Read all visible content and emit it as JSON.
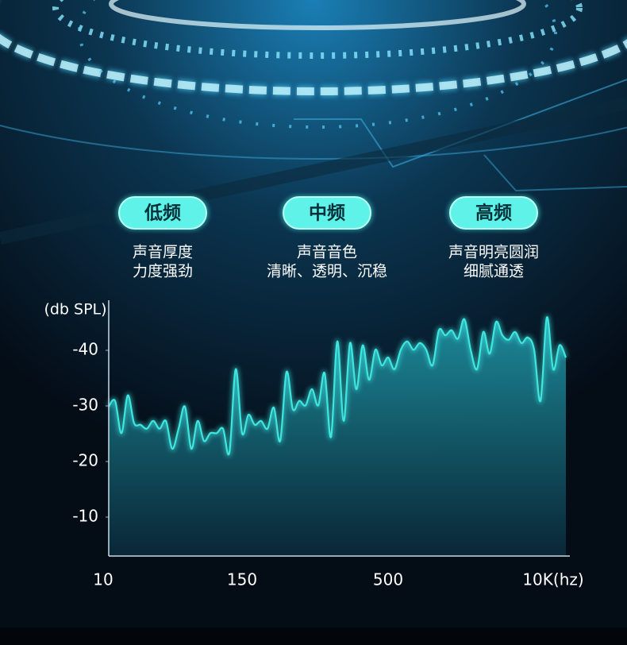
{
  "bands": [
    {
      "label": "低频",
      "lines": [
        "声音厚度",
        "力度强劲"
      ]
    },
    {
      "label": "中频",
      "lines": [
        "声音音色",
        "清晰、透明、沉稳"
      ]
    },
    {
      "label": "高频",
      "lines": [
        "声音明亮圆润",
        "细腻通透"
      ]
    }
  ],
  "chart_data": {
    "type": "area",
    "y_label": "(db SPL)",
    "categories": [
      "10",
      null,
      null,
      null,
      null,
      null,
      null,
      null,
      null,
      null,
      null,
      null,
      null,
      null,
      null,
      null,
      null,
      null,
      null,
      null,
      null,
      "150",
      null,
      null,
      null,
      null,
      null,
      null,
      null,
      null,
      null,
      null,
      null,
      null,
      null,
      null,
      null,
      null,
      null,
      null,
      null,
      null,
      null,
      null,
      "500",
      null,
      null,
      null,
      null,
      null,
      null,
      null,
      null,
      null,
      null,
      null,
      null,
      null,
      null,
      null,
      null,
      null,
      null,
      null,
      null,
      null,
      null,
      null,
      null,
      null,
      "10K(hz)",
      null,
      null
    ],
    "series": [
      {
        "color": "#3ee6e0",
        "values": [
          -29.9,
          -30.9,
          -25.1,
          -31.9,
          -26.9,
          -26.6,
          -25.9,
          -27.3,
          -25.9,
          -27.3,
          -22.3,
          -25.9,
          -29.9,
          -22.3,
          -27.3,
          -23.7,
          -25.1,
          -25.1,
          -25.9,
          -21.6,
          -36.6,
          -25.1,
          -28.4,
          -26.6,
          -27.3,
          -25.9,
          -29.7,
          -23.7,
          -36.1,
          -29.4,
          -30.9,
          -30.1,
          -33.0,
          -30.1,
          -35.9,
          -24.4,
          -41.6,
          -27.3,
          -41.3,
          -33.0,
          -40.9,
          -34.7,
          -40.1,
          -37.3,
          -38.7,
          -36.6,
          -40.1,
          -41.6,
          -40.1,
          -41.3,
          -40.1,
          -37.3,
          -43.6,
          -42.7,
          -43.6,
          -42.1,
          -45.6,
          -40.1,
          -36.6,
          -43.3,
          -39.4,
          -45.1,
          -42.7,
          -41.9,
          -43.3,
          -41.3,
          -42.3,
          -40.1,
          -30.9,
          -45.9,
          -36.6,
          -40.9,
          -38.7
        ]
      }
    ],
    "ylim": [
      -3,
      -49
    ],
    "yticks": [
      -40,
      -30,
      -20,
      -10
    ]
  }
}
